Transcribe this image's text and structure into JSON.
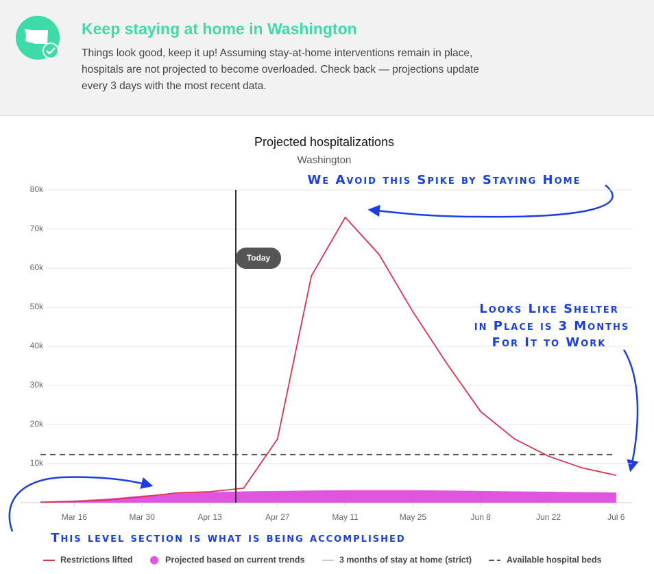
{
  "header": {
    "title": "Keep staying at home in Washington",
    "text": [
      "Things look good, keep it up! Assuming stay-at-home interventions remain in place,",
      "hospitals are not projected to become overloaded. Check back — projections update",
      "every 3 days with the most recent data."
    ]
  },
  "chart_data": {
    "type": "line",
    "title": "Projected hospitalizations",
    "subtitle": "Washington",
    "x": [
      null,
      "Mar 16",
      null,
      "Mar 30",
      null,
      "Apr 13",
      null,
      "Apr 27",
      null,
      "May 11",
      null,
      "May 25",
      null,
      "Jun 8",
      null,
      "Jun 22",
      null,
      "Jul 6"
    ],
    "series": [
      {
        "name": "Restrictions lifted",
        "color": "#e0314b",
        "style": "line",
        "values": [
          100,
          300,
          700,
          1500,
          2500,
          2800,
          3700,
          16300,
          58000,
          73000,
          63500,
          48800,
          35600,
          23300,
          16300,
          11900,
          8900,
          7000
        ]
      },
      {
        "name": "Projected based on current trends",
        "color": "#e055e0",
        "style": "area",
        "values": [
          200,
          500,
          1000,
          1800,
          2300,
          2700,
          2900,
          3000,
          3100,
          3200,
          3200,
          3200,
          3100,
          3000,
          2900,
          2800,
          2700,
          2600
        ]
      },
      {
        "name": "3 months of stay at home (strict)",
        "color": "#cccccc",
        "style": "line",
        "values": [
          200,
          450,
          900,
          1600,
          2100,
          2500,
          2700,
          2800,
          2900,
          3000,
          3000,
          3000,
          2900,
          2800,
          2700,
          2600,
          2500,
          2400
        ]
      },
      {
        "name": "Available hospital beds",
        "color": "#555555",
        "style": "dashed",
        "values": [
          12300,
          12300,
          12300,
          12300,
          12300,
          12300,
          12300,
          12300,
          12300,
          12300,
          12300,
          12300,
          12300,
          12300,
          12300,
          12300,
          12300,
          12300
        ]
      }
    ],
    "ylim": [
      0,
      80000
    ],
    "yticks": [
      {
        "value": 10000,
        "label": "10k"
      },
      {
        "value": 20000,
        "label": "20k"
      },
      {
        "value": 30000,
        "label": "30k"
      },
      {
        "value": 40000,
        "label": "40k"
      },
      {
        "value": 50000,
        "label": "50k"
      },
      {
        "value": 60000,
        "label": "60k"
      },
      {
        "value": 70000,
        "label": "70k"
      },
      {
        "value": 80000,
        "label": "80k"
      }
    ],
    "grid": true,
    "today_label": "Today",
    "annotations": [
      "We Avoid this Spike by Staying Home",
      "Looks Like Shelter",
      "in Place is 3 Months",
      "For It to Work",
      "This level section is what is being accomplished"
    ]
  }
}
